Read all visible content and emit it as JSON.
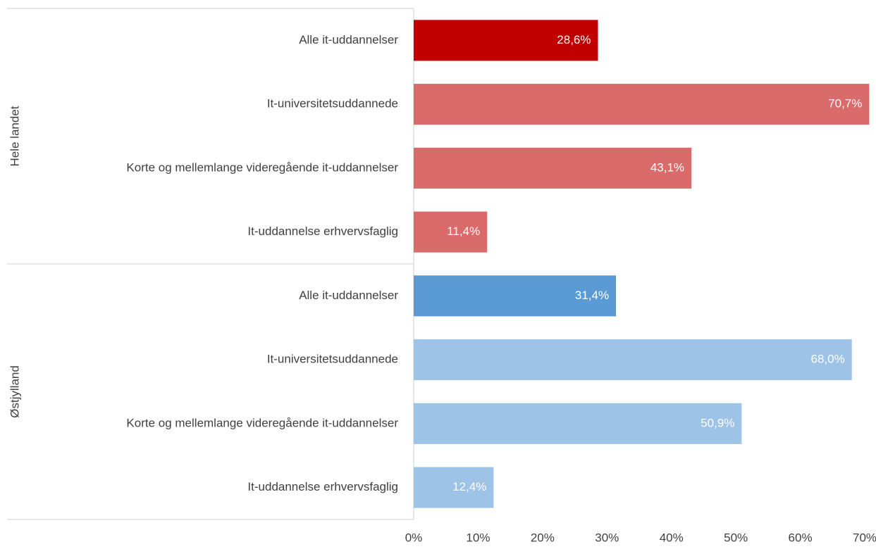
{
  "chart_data": {
    "type": "bar",
    "orientation": "horizontal",
    "groups": [
      {
        "name": "Hele landet",
        "categories": [
          "Alle it-uddannelser",
          "It-universitetsuddannede",
          "Korte og mellemlange videregående it-uddannelser",
          "It-uddannelse erhvervsfaglig"
        ],
        "values": [
          28.6,
          70.7,
          43.1,
          11.4
        ],
        "value_labels": [
          "28,6%",
          "70,7%",
          "43,1%",
          "11,4%"
        ],
        "colors": [
          "#c00000",
          "#d96b6b",
          "#d96b6b",
          "#d96b6b"
        ]
      },
      {
        "name": "Østjylland",
        "categories": [
          "Alle it-uddannelser",
          "It-universitetsuddannede",
          "Korte og mellemlange videregående it-uddannelser",
          "It-uddannelse erhvervsfaglig"
        ],
        "values": [
          31.4,
          68.0,
          50.9,
          12.4
        ],
        "value_labels": [
          "31,4%",
          "68,0%",
          "50,9%",
          "12,4%"
        ],
        "colors": [
          "#5b9bd5",
          "#9dc3e6",
          "#9dc3e6",
          "#9dc3e6"
        ]
      }
    ],
    "xlim": [
      0,
      70
    ],
    "xticks": [
      {
        "value": 0,
        "label": "0%"
      },
      {
        "value": 10,
        "label": "10%"
      },
      {
        "value": 20,
        "label": "20%"
      },
      {
        "value": 30,
        "label": "30%"
      },
      {
        "value": 40,
        "label": "40%"
      },
      {
        "value": 50,
        "label": "50%"
      },
      {
        "value": 60,
        "label": "60%"
      },
      {
        "value": 70,
        "label": "70%"
      }
    ],
    "grid": false
  }
}
